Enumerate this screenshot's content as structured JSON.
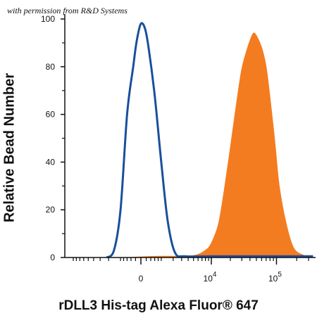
{
  "watermark": "with permission from R&D Systems",
  "colors": {
    "control": "#1a4f9c",
    "stained": "#f47c20",
    "axis": "#111111"
  },
  "chart_data": {
    "type": "area",
    "xlabel": "rDLL3 His-tag Alexa Fluor® 647",
    "ylabel": "Relative Bead Number",
    "y_ticks": [
      "0",
      "20",
      "40",
      "60",
      "80",
      "100"
    ],
    "ylim": [
      0,
      100
    ],
    "x_ticks": [
      {
        "value": 0,
        "label": "0",
        "sup": ""
      },
      {
        "value": 10000,
        "label": "10",
        "sup": "4"
      },
      {
        "value": 100000,
        "label": "10",
        "sup": "5"
      }
    ],
    "x_scale": "biexponential",
    "grid": false,
    "series": [
      {
        "style": "outline",
        "x": [
          -2200,
          -1500,
          -1000,
          -600,
          -300,
          -150,
          0,
          150,
          300,
          600,
          1000,
          1500,
          2200,
          3500,
          10000,
          100000,
          350000
        ],
        "y": [
          0,
          3,
          20,
          60,
          80,
          91,
          98,
          96,
          88,
          68,
          40,
          15,
          2,
          0.5,
          0.5,
          0.5,
          0.5
        ]
      },
      {
        "style": "filled",
        "x": [
          -600,
          800,
          3000,
          5500,
          8000,
          10000,
          13000,
          16000,
          20000,
          25000,
          30000,
          35000,
          40000,
          45000,
          50000,
          60000,
          70000,
          80000,
          95000,
          110000,
          140000,
          180000,
          250000,
          350000
        ],
        "y": [
          0,
          0.5,
          0.5,
          1,
          3,
          6,
          14,
          28,
          46,
          65,
          79,
          86,
          91,
          94,
          93,
          88,
          80,
          67,
          48,
          30,
          14,
          4,
          1,
          0
        ]
      }
    ]
  }
}
